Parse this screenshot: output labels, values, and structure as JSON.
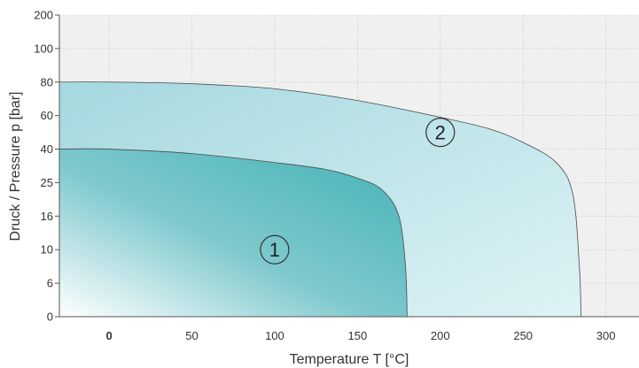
{
  "chart_data": {
    "type": "area",
    "xlabel": "Temperature T   [°C]",
    "ylabel": "Druck / Pressure p   [bar]",
    "xlim": [
      -30,
      320
    ],
    "x_ticks": [
      0,
      50,
      100,
      150,
      200,
      250,
      300
    ],
    "y_ticks": [
      "0",
      "6",
      "10",
      "16",
      "25",
      "40",
      "60",
      "80",
      "100",
      "200"
    ],
    "y_scale": "categorical (non-linear)",
    "grid": true,
    "background_color": "#f0f0f0",
    "regions": [
      {
        "label": "2",
        "max_pressure_bar": 80,
        "max_temperature_c": 285,
        "boundary": [
          [
            -30,
            80
          ],
          [
            0,
            80
          ],
          [
            50,
            79
          ],
          [
            100,
            76
          ],
          [
            150,
            69
          ],
          [
            200,
            59
          ],
          [
            230,
            52
          ],
          [
            250,
            44
          ],
          [
            270,
            34
          ],
          [
            280,
            22
          ],
          [
            284,
            8
          ],
          [
            285,
            0
          ]
        ],
        "colors": [
          "#a4d8df",
          "#def3f5"
        ]
      },
      {
        "label": "1",
        "max_pressure_bar": 40,
        "max_temperature_c": 180,
        "boundary": [
          [
            -30,
            40
          ],
          [
            0,
            40
          ],
          [
            50,
            38
          ],
          [
            100,
            34
          ],
          [
            130,
            31
          ],
          [
            150,
            27
          ],
          [
            165,
            23
          ],
          [
            175,
            16
          ],
          [
            179,
            8
          ],
          [
            180,
            0
          ]
        ],
        "colors": [
          "#42b2b7",
          "#ffffff"
        ]
      }
    ]
  }
}
